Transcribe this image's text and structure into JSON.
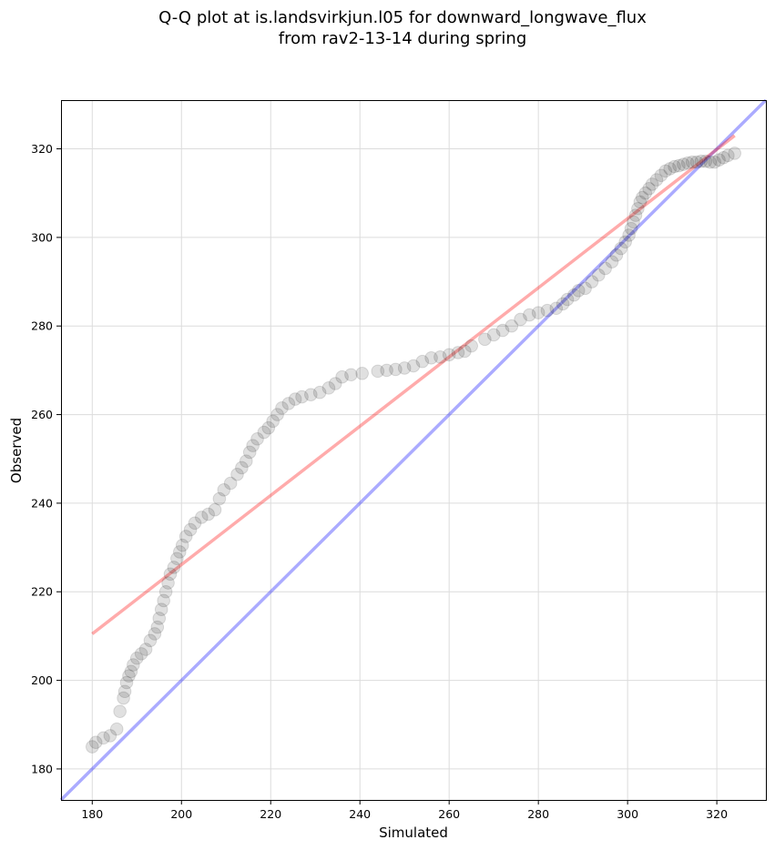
{
  "chart_data": {
    "type": "scatter",
    "title_line1": "Q-Q plot at is.landsvirkjun.l05 for downward_longwave_flux",
    "title_line2": "from rav2-13-14 during spring",
    "xlabel": "Simulated",
    "ylabel": "Observed",
    "xlim": [
      173,
      331
    ],
    "ylim": [
      173,
      331
    ],
    "x_ticks": [
      180,
      200,
      220,
      240,
      260,
      280,
      300,
      320
    ],
    "y_ticks": [
      180,
      200,
      220,
      240,
      260,
      280,
      300,
      320
    ],
    "x_tick_labels": [
      "180",
      "200",
      "220",
      "240",
      "260",
      "280",
      "300",
      "320"
    ],
    "y_tick_labels": [
      "180",
      "200",
      "220",
      "240",
      "260",
      "280",
      "300",
      "320"
    ],
    "grid": true,
    "series": [
      {
        "name": "quantiles",
        "color": "#000000",
        "points": [
          [
            180.0,
            185.0
          ],
          [
            180.8,
            186.0
          ],
          [
            182.5,
            187.0
          ],
          [
            184.0,
            187.5
          ],
          [
            185.5,
            189.0
          ],
          [
            186.2,
            193.0
          ],
          [
            187.0,
            196.0
          ],
          [
            187.3,
            197.5
          ],
          [
            187.7,
            199.5
          ],
          [
            188.2,
            201.0
          ],
          [
            188.7,
            202.0
          ],
          [
            189.2,
            203.5
          ],
          [
            190.0,
            205.0
          ],
          [
            191.0,
            206.0
          ],
          [
            192.0,
            207.0
          ],
          [
            193.0,
            209.0
          ],
          [
            194.0,
            210.5
          ],
          [
            194.6,
            212.0
          ],
          [
            195.0,
            214.0
          ],
          [
            195.5,
            216.0
          ],
          [
            196.0,
            218.0
          ],
          [
            196.5,
            220.0
          ],
          [
            197.0,
            222.0
          ],
          [
            197.5,
            224.0
          ],
          [
            198.3,
            225.5
          ],
          [
            199.0,
            227.5
          ],
          [
            199.6,
            229.0
          ],
          [
            200.2,
            230.5
          ],
          [
            201.0,
            232.5
          ],
          [
            202.0,
            234.0
          ],
          [
            203.0,
            235.5
          ],
          [
            204.5,
            236.8
          ],
          [
            206.0,
            237.5
          ],
          [
            207.5,
            238.5
          ],
          [
            208.5,
            241.0
          ],
          [
            209.5,
            243.0
          ],
          [
            211.0,
            244.5
          ],
          [
            212.5,
            246.5
          ],
          [
            213.5,
            248.0
          ],
          [
            214.5,
            249.5
          ],
          [
            215.3,
            251.5
          ],
          [
            216.0,
            253.0
          ],
          [
            217.0,
            254.5
          ],
          [
            218.5,
            256.0
          ],
          [
            219.5,
            257.0
          ],
          [
            220.5,
            258.5
          ],
          [
            221.5,
            260.0
          ],
          [
            222.5,
            261.5
          ],
          [
            224.0,
            262.5
          ],
          [
            225.5,
            263.5
          ],
          [
            227.0,
            264.0
          ],
          [
            229.0,
            264.5
          ],
          [
            231.0,
            265.0
          ],
          [
            233.0,
            266.0
          ],
          [
            234.5,
            267.0
          ],
          [
            236.0,
            268.5
          ],
          [
            238.0,
            269.0
          ],
          [
            240.5,
            269.3
          ],
          [
            244.0,
            269.8
          ],
          [
            246.0,
            270.0
          ],
          [
            248.0,
            270.2
          ],
          [
            250.0,
            270.5
          ],
          [
            252.0,
            271.0
          ],
          [
            254.0,
            272.0
          ],
          [
            256.0,
            272.8
          ],
          [
            258.0,
            273.0
          ],
          [
            260.0,
            273.5
          ],
          [
            262.0,
            274.0
          ],
          [
            263.5,
            274.3
          ],
          [
            265.0,
            275.5
          ],
          [
            268.0,
            277.0
          ],
          [
            270.0,
            278.0
          ],
          [
            272.0,
            279.0
          ],
          [
            274.0,
            280.0
          ],
          [
            276.0,
            281.5
          ],
          [
            278.0,
            282.5
          ],
          [
            280.0,
            283.0
          ],
          [
            282.0,
            283.5
          ],
          [
            284.0,
            284.0
          ],
          [
            285.5,
            285.0
          ],
          [
            286.5,
            286.0
          ],
          [
            288.0,
            287.0
          ],
          [
            289.0,
            288.0
          ],
          [
            290.5,
            288.5
          ],
          [
            292.0,
            290.0
          ],
          [
            293.5,
            291.5
          ],
          [
            295.0,
            293.0
          ],
          [
            296.5,
            294.5
          ],
          [
            297.5,
            296.0
          ],
          [
            298.5,
            297.5
          ],
          [
            299.5,
            299.0
          ],
          [
            300.3,
            300.5
          ],
          [
            300.8,
            302.0
          ],
          [
            301.3,
            303.5
          ],
          [
            301.8,
            305.0
          ],
          [
            302.3,
            306.5
          ],
          [
            302.8,
            308.0
          ],
          [
            303.3,
            309.0
          ],
          [
            304.0,
            310.0
          ],
          [
            304.8,
            311.0
          ],
          [
            305.5,
            312.0
          ],
          [
            306.5,
            313.0
          ],
          [
            307.5,
            314.0
          ],
          [
            308.5,
            315.0
          ],
          [
            309.5,
            315.5
          ],
          [
            310.5,
            316.0
          ],
          [
            311.5,
            316.2
          ],
          [
            312.5,
            316.5
          ],
          [
            313.5,
            316.8
          ],
          [
            314.5,
            317.0
          ],
          [
            315.5,
            317.0
          ],
          [
            316.5,
            317.2
          ],
          [
            317.5,
            317.2
          ],
          [
            318.5,
            317.0
          ],
          [
            319.5,
            317.0
          ],
          [
            320.5,
            317.5
          ],
          [
            321.5,
            318.0
          ],
          [
            322.5,
            318.5
          ],
          [
            324.0,
            319.0
          ]
        ]
      }
    ],
    "reference_lines": [
      {
        "name": "1:1 line",
        "color": "#0000ff",
        "x": [
          173,
          331
        ],
        "y": [
          173,
          331
        ]
      },
      {
        "name": "fit line",
        "color": "#ff0000",
        "x": [
          180,
          324
        ],
        "y": [
          210.5,
          323
        ]
      }
    ]
  }
}
